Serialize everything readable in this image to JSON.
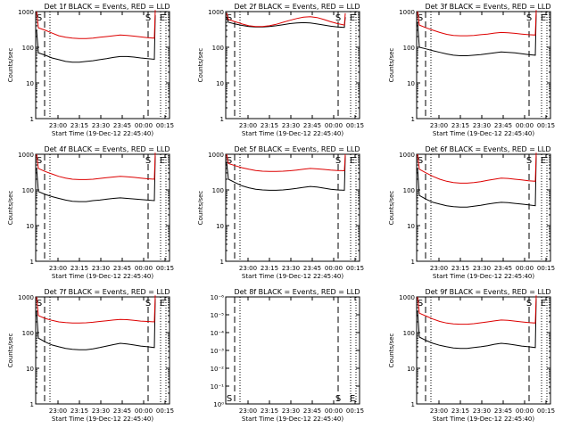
{
  "colors": {
    "events": "#000000",
    "lld": "#dd0000",
    "axis": "#000000",
    "background": "#ffffff"
  },
  "chart_data": [
    {
      "type": "line",
      "title": "Det 1f BLACK = Events, RED = LLD",
      "xlabel": "Start Time (19-Dec-12 22:45:40)",
      "ylabel": "Counts/sec",
      "x_ticks": [
        "23:00",
        "23:15",
        "23:30",
        "23:45",
        "00:00",
        "00:15"
      ],
      "y_ticks": [
        "1",
        "10",
        "100",
        "1000"
      ],
      "y_scale": "log",
      "ylim": [
        1,
        1000
      ],
      "markers": [
        "S",
        "E"
      ],
      "empty": false,
      "series": [
        {
          "name": "Events",
          "color": "black",
          "values": [
            300,
            70,
            60,
            50,
            45,
            40,
            38,
            38,
            40,
            42,
            45,
            48,
            52,
            55,
            55,
            53,
            50,
            48,
            46,
            800
          ]
        },
        {
          "name": "LLD",
          "color": "red",
          "values": [
            1000,
            350,
            300,
            250,
            210,
            190,
            180,
            175,
            175,
            180,
            190,
            200,
            210,
            220,
            215,
            205,
            195,
            185,
            180,
            1100
          ]
        }
      ]
    },
    {
      "type": "line",
      "title": "Det 2f BLACK = Events, RED = LLD",
      "xlabel": "Start Time (19-Dec-12 22:45:40)",
      "ylabel": "Counts/sec",
      "x_ticks": [
        "23:00",
        "23:15",
        "23:30",
        "23:45",
        "00:00",
        "00:15"
      ],
      "y_ticks": [
        "1",
        "10",
        "100",
        "1000"
      ],
      "y_scale": "log",
      "ylim": [
        1,
        1000
      ],
      "markers": [
        "S",
        "E"
      ],
      "empty": false,
      "series": [
        {
          "name": "Events",
          "color": "black",
          "values": [
            700,
            500,
            450,
            410,
            380,
            370,
            370,
            380,
            400,
            430,
            460,
            480,
            490,
            480,
            450,
            420,
            390,
            370,
            360,
            700
          ]
        },
        {
          "name": "LLD",
          "color": "red",
          "values": [
            900,
            600,
            520,
            450,
            400,
            380,
            380,
            400,
            440,
            500,
            570,
            640,
            700,
            720,
            680,
            600,
            520,
            460,
            420,
            900
          ]
        }
      ]
    },
    {
      "type": "line",
      "title": "Det 3f BLACK = Events, RED = LLD",
      "xlabel": "Start Time (19-Dec-12 22:45:40)",
      "ylabel": "Counts/sec",
      "x_ticks": [
        "23:00",
        "23:15",
        "23:30",
        "23:45",
        "00:00",
        "00:15"
      ],
      "y_ticks": [
        "1",
        "10",
        "100",
        "1000"
      ],
      "y_scale": "log",
      "ylim": [
        1,
        1000
      ],
      "markers": [
        "S",
        "E"
      ],
      "empty": false,
      "series": [
        {
          "name": "Events",
          "color": "black",
          "values": [
            500,
            100,
            90,
            80,
            72,
            65,
            60,
            58,
            58,
            60,
            62,
            66,
            70,
            74,
            72,
            70,
            66,
            62,
            60,
            900
          ]
        },
        {
          "name": "LLD",
          "color": "red",
          "values": [
            1000,
            420,
            350,
            300,
            260,
            230,
            215,
            210,
            210,
            215,
            225,
            235,
            250,
            260,
            255,
            245,
            235,
            225,
            220,
            1100
          ]
        }
      ]
    },
    {
      "type": "line",
      "title": "Det 4f BLACK = Events, RED = LLD",
      "xlabel": "Start Time (19-Dec-12 22:45:40)",
      "ylabel": "Counts/sec",
      "x_ticks": [
        "23:00",
        "23:15",
        "23:30",
        "23:45",
        "00:00",
        "00:15"
      ],
      "y_ticks": [
        "1",
        "10",
        "100",
        "1000"
      ],
      "y_scale": "log",
      "ylim": [
        1,
        1000
      ],
      "markers": [
        "S",
        "E"
      ],
      "empty": false,
      "series": [
        {
          "name": "Events",
          "color": "black",
          "values": [
            400,
            90,
            75,
            65,
            58,
            52,
            48,
            47,
            47,
            50,
            52,
            55,
            58,
            60,
            58,
            56,
            54,
            52,
            50,
            900
          ]
        },
        {
          "name": "LLD",
          "color": "red",
          "values": [
            1000,
            400,
            330,
            280,
            240,
            215,
            200,
            195,
            195,
            200,
            210,
            220,
            230,
            240,
            235,
            225,
            215,
            205,
            200,
            1100
          ]
        }
      ]
    },
    {
      "type": "line",
      "title": "Det 5f BLACK = Events, RED = LLD",
      "xlabel": "Start Time (19-Dec-12 22:45:40)",
      "ylabel": "Counts/sec",
      "x_ticks": [
        "23:00",
        "23:15",
        "23:30",
        "23:45",
        "00:00",
        "00:15"
      ],
      "y_ticks": [
        "1",
        "10",
        "100",
        "1000"
      ],
      "y_scale": "log",
      "ylim": [
        1,
        1000
      ],
      "markers": [
        "S",
        "E"
      ],
      "empty": false,
      "series": [
        {
          "name": "Events",
          "color": "black",
          "values": [
            600,
            200,
            160,
            130,
            115,
            105,
            100,
            98,
            98,
            100,
            105,
            110,
            118,
            125,
            120,
            112,
            105,
            100,
            98,
            900
          ]
        },
        {
          "name": "LLD",
          "color": "red",
          "values": [
            1000,
            550,
            480,
            420,
            380,
            350,
            335,
            330,
            330,
            335,
            345,
            360,
            380,
            400,
            390,
            375,
            360,
            350,
            345,
            1000
          ]
        }
      ]
    },
    {
      "type": "line",
      "title": "Det 6f BLACK = Events, RED = LLD",
      "xlabel": "Start Time (19-Dec-12 22:45:40)",
      "ylabel": "Counts/sec",
      "x_ticks": [
        "23:00",
        "23:15",
        "23:30",
        "23:45",
        "00:00",
        "00:15"
      ],
      "y_ticks": [
        "1",
        "10",
        "100",
        "1000"
      ],
      "y_scale": "log",
      "ylim": [
        1,
        1000
      ],
      "markers": [
        "S",
        "E"
      ],
      "empty": false,
      "series": [
        {
          "name": "Events",
          "color": "black",
          "values": [
            400,
            70,
            55,
            45,
            40,
            36,
            34,
            33,
            33,
            35,
            37,
            40,
            43,
            45,
            44,
            42,
            40,
            38,
            36,
            900
          ]
        },
        {
          "name": "LLD",
          "color": "red",
          "values": [
            1000,
            380,
            300,
            240,
            200,
            175,
            160,
            155,
            155,
            160,
            170,
            185,
            200,
            215,
            210,
            200,
            190,
            180,
            175,
            1100
          ]
        }
      ]
    },
    {
      "type": "line",
      "title": "Det 7f BLACK = Events, RED = LLD",
      "xlabel": "Start Time (19-Dec-12 22:45:40)",
      "ylabel": "Counts/sec",
      "x_ticks": [
        "23:00",
        "23:15",
        "23:30",
        "23:45",
        "00:00",
        "00:15"
      ],
      "y_ticks": [
        "1",
        "10",
        "100",
        "1000"
      ],
      "y_scale": "log",
      "ylim": [
        1,
        1000
      ],
      "markers": [
        "S",
        "E"
      ],
      "empty": false,
      "series": [
        {
          "name": "Events",
          "color": "black",
          "values": [
            400,
            70,
            55,
            45,
            40,
            36,
            34,
            33,
            33,
            35,
            38,
            42,
            46,
            50,
            48,
            45,
            42,
            40,
            38,
            900
          ]
        },
        {
          "name": "LLD",
          "color": "red",
          "values": [
            1000,
            300,
            250,
            220,
            200,
            190,
            185,
            185,
            188,
            195,
            205,
            215,
            225,
            235,
            230,
            220,
            210,
            205,
            200,
            1100
          ]
        }
      ]
    },
    {
      "type": "line",
      "title": "Det 8f BLACK = Events, RED = LLD",
      "xlabel": "Start Time (19-Dec-12 22:45:40)",
      "ylabel": "",
      "x_ticks": [
        "23:00",
        "23:15",
        "23:30",
        "23:45",
        "00:00",
        "00:15"
      ],
      "y_ticks": [
        "10⁰",
        "10⁻¹",
        "10⁻²",
        "10⁻³",
        "10⁻⁴",
        "10⁻⁵",
        "10⁻⁶"
      ],
      "markers": [
        "S",
        "E"
      ],
      "empty": true,
      "series": []
    },
    {
      "type": "line",
      "title": "Det 9f BLACK = Events, RED = LLD",
      "xlabel": "Start Time (19-Dec-12 22:45:40)",
      "ylabel": "Counts/sec",
      "x_ticks": [
        "23:00",
        "23:15",
        "23:30",
        "23:45",
        "00:00",
        "00:15"
      ],
      "y_ticks": [
        "1",
        "10",
        "100",
        "1000"
      ],
      "y_scale": "log",
      "ylim": [
        1,
        1000
      ],
      "markers": [
        "S",
        "E"
      ],
      "empty": false,
      "series": [
        {
          "name": "Events",
          "color": "black",
          "values": [
            400,
            75,
            60,
            50,
            44,
            40,
            37,
            36,
            36,
            38,
            40,
            43,
            47,
            50,
            48,
            45,
            42,
            40,
            38,
            900
          ]
        },
        {
          "name": "LLD",
          "color": "red",
          "values": [
            1000,
            350,
            290,
            240,
            205,
            185,
            175,
            172,
            172,
            178,
            188,
            200,
            212,
            225,
            220,
            210,
            200,
            190,
            185,
            1100
          ]
        }
      ]
    }
  ]
}
